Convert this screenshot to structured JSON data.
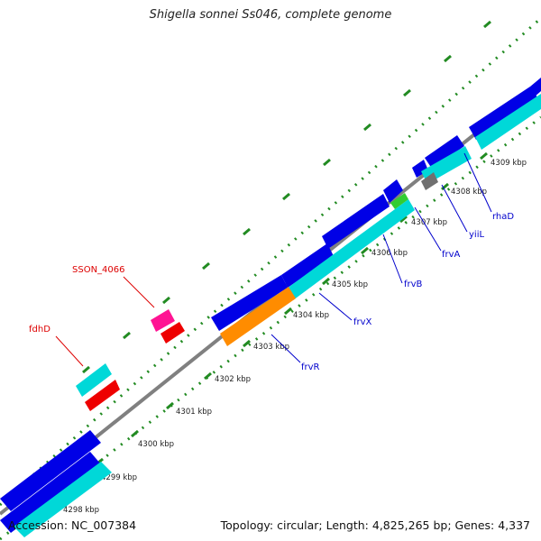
{
  "title": "Shigella sonnei Ss046, complete genome",
  "accession": "Accession: NC_007384",
  "summary": "Topology: circular; Length: 4,825,265 bp; Genes: 4,337",
  "colors": {
    "backbone": "#808080",
    "gene_plus": "#0000e6",
    "gene_minus": "#00d8d8",
    "orange_gene": "#ff8c00",
    "red_gene": "#ee0000",
    "magenta_gene": "#ff1493",
    "green_gene": "#32cd32",
    "gray_gene": "#707070",
    "label_blue": "#0000cc",
    "label_red": "#dd0000",
    "ruler": "#228b22"
  },
  "ticks": [
    "4298 kbp",
    "4299 kbp",
    "4300 kbp",
    "4301 kbp",
    "4302 kbp",
    "4303 kbp",
    "4304 kbp",
    "4305 kbp",
    "4306 kbp",
    "4307 kbp",
    "4308 kbp",
    "4309 kbp"
  ],
  "gene_labels": [
    "SSON_4066",
    "fdhD",
    "frvR",
    "frvX",
    "frvB",
    "frvA",
    "yiiL",
    "rhaD"
  ]
}
